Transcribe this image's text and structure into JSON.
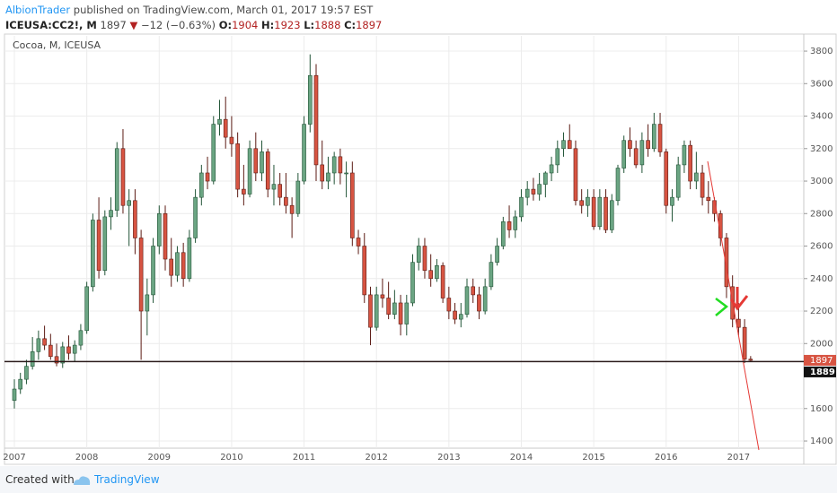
{
  "header": {
    "author": "AlbionTrader",
    "published": "published on TradingView.com, March 01, 2017 19:57 EST",
    "symbol": "ICEUSA:CC2!, M",
    "arrow": "▼",
    "change": "−12 (−0.63%)",
    "open_label": "O:",
    "high_label": "H:",
    "low_label": "L:",
    "close_label": "C:"
  },
  "chart_data": {
    "type": "candlestick",
    "title": "Cocoa, M, ICEUSA",
    "categories": [
      "2007",
      null,
      null,
      null,
      null,
      null,
      null,
      null,
      null,
      null,
      null,
      null,
      "2008",
      null,
      null,
      null,
      null,
      null,
      null,
      null,
      null,
      null,
      null,
      null,
      "2009",
      null,
      null,
      null,
      null,
      null,
      null,
      null,
      null,
      null,
      null,
      null,
      "2010",
      null,
      null,
      null,
      null,
      null,
      null,
      null,
      null,
      null,
      null,
      null,
      "2011",
      null,
      null,
      null,
      null,
      null,
      null,
      null,
      null,
      null,
      null,
      null,
      "2012",
      null,
      null,
      null,
      null,
      null,
      null,
      null,
      null,
      null,
      null,
      null,
      "2013",
      null,
      null,
      null,
      null,
      null,
      null,
      null,
      null,
      null,
      null,
      null,
      "2014",
      null,
      null,
      null,
      null,
      null,
      null,
      null,
      null,
      null,
      null,
      null,
      "2015",
      null,
      null,
      null,
      null,
      null,
      null,
      null,
      null,
      null,
      null,
      null,
      "2016",
      null,
      null,
      null,
      null,
      null,
      null,
      null,
      null,
      null,
      null,
      null,
      "2017",
      null,
      null
    ],
    "open": [
      1650,
      1720,
      1780,
      1860,
      1950,
      2030,
      1990,
      1920,
      1880,
      1980,
      1940,
      1990,
      2080,
      2350,
      2760,
      2450,
      2780,
      2820,
      3200,
      2850,
      2880,
      2650,
      2200,
      2300,
      2600,
      2800,
      2520,
      2420,
      2560,
      2400,
      2650,
      2900,
      3050,
      3000,
      3350,
      3380,
      3270,
      3230,
      2950,
      2920,
      3200,
      3050,
      3180,
      2950,
      2980,
      2900,
      2850,
      2800,
      3000,
      3350,
      3650,
      3100,
      3000,
      3050,
      3150,
      3050,
      3050,
      2650,
      2600,
      2300,
      2100,
      2300,
      2280,
      2180,
      2250,
      2120,
      2250,
      2500,
      2600,
      2450,
      2400,
      2480,
      2280,
      2200,
      2150,
      2180,
      2350,
      2300,
      2200,
      2350,
      2500,
      2600,
      2750,
      2700,
      2780,
      2900,
      2950,
      2920,
      2980,
      3050,
      3100,
      3200,
      3250,
      3200,
      2880,
      2850,
      2900,
      2720,
      2900,
      2700,
      2880,
      3080,
      3250,
      3200,
      3100,
      3250,
      3200,
      3350,
      3180,
      2850,
      2900,
      3100,
      3220,
      3000,
      3050,
      2900,
      2880,
      2800,
      2650,
      2350,
      2150,
      2100,
      1904
    ],
    "high": [
      1780,
      1820,
      1900,
      2040,
      2080,
      2110,
      2060,
      2000,
      2010,
      2050,
      2020,
      2120,
      2380,
      2800,
      2900,
      2820,
      2900,
      3240,
      3320,
      2950,
      2950,
      2700,
      2400,
      2650,
      2850,
      2850,
      2650,
      2600,
      2620,
      2700,
      2950,
      3100,
      3150,
      3400,
      3500,
      3520,
      3400,
      3300,
      3100,
      3250,
      3300,
      3250,
      3200,
      3100,
      3050,
      3050,
      2900,
      3050,
      3400,
      3780,
      3720,
      3250,
      3150,
      3180,
      3200,
      3120,
      3120,
      2700,
      2680,
      2350,
      2350,
      2400,
      2380,
      2330,
      2300,
      2300,
      2550,
      2650,
      2650,
      2550,
      2520,
      2500,
      2350,
      2250,
      2250,
      2400,
      2400,
      2350,
      2400,
      2550,
      2650,
      2780,
      2850,
      2820,
      2950,
      3000,
      3020,
      3050,
      3060,
      3150,
      3250,
      3300,
      3350,
      3250,
      2950,
      2950,
      2950,
      2950,
      2950,
      2920,
      3100,
      3280,
      3330,
      3250,
      3300,
      3350,
      3420,
      3420,
      3200,
      2950,
      3150,
      3250,
      3250,
      3180,
      3100,
      3000,
      2900,
      2820,
      2680,
      2420,
      2250,
      2150,
      1923
    ],
    "low": [
      1600,
      1690,
      1750,
      1840,
      1900,
      1960,
      1900,
      1860,
      1850,
      1900,
      1890,
      1960,
      2060,
      2320,
      2400,
      2420,
      2700,
      2780,
      2800,
      2600,
      2550,
      1900,
      2050,
      2250,
      2550,
      2450,
      2350,
      2380,
      2350,
      2380,
      2620,
      2850,
      2950,
      2980,
      3280,
      3200,
      3150,
      2900,
      2850,
      2900,
      3000,
      3000,
      2900,
      2850,
      2850,
      2800,
      2650,
      2780,
      2980,
      3300,
      3000,
      2950,
      2950,
      2980,
      2980,
      2900,
      2600,
      2550,
      2250,
      1990,
      2080,
      2220,
      2150,
      2150,
      2050,
      2050,
      2230,
      2450,
      2400,
      2350,
      2380,
      2250,
      2150,
      2120,
      2100,
      2160,
      2250,
      2150,
      2180,
      2330,
      2480,
      2580,
      2650,
      2650,
      2750,
      2850,
      2880,
      2880,
      2900,
      3000,
      3050,
      3150,
      3200,
      2850,
      2800,
      2780,
      2700,
      2700,
      2680,
      2680,
      2850,
      3050,
      3150,
      3080,
      3050,
      3150,
      3180,
      3150,
      2800,
      2750,
      2880,
      3050,
      2950,
      2950,
      2850,
      2800,
      2750,
      2600,
      2280,
      2100,
      2050,
      1880,
      1888
    ],
    "close": [
      1720,
      1780,
      1860,
      1950,
      2030,
      1990,
      1920,
      1880,
      1980,
      1940,
      1990,
      2080,
      2350,
      2760,
      2450,
      2780,
      2820,
      3200,
      2850,
      2880,
      2650,
      2200,
      2300,
      2600,
      2800,
      2520,
      2420,
      2560,
      2400,
      2650,
      2900,
      3050,
      3000,
      3350,
      3380,
      3270,
      3230,
      2950,
      2920,
      3200,
      3050,
      3180,
      2950,
      2980,
      2900,
      2850,
      2800,
      3000,
      3350,
      3650,
      3100,
      3000,
      3050,
      3150,
      3050,
      3050,
      2650,
      2600,
      2300,
      2100,
      2300,
      2280,
      2180,
      2250,
      2120,
      2250,
      2500,
      2600,
      2450,
      2400,
      2480,
      2280,
      2200,
      2150,
      2180,
      2350,
      2300,
      2200,
      2350,
      2500,
      2600,
      2750,
      2700,
      2780,
      2900,
      2950,
      2920,
      2980,
      3050,
      3100,
      3200,
      3250,
      3200,
      2880,
      2850,
      2900,
      2720,
      2900,
      2700,
      2880,
      3080,
      3250,
      3200,
      3100,
      3250,
      3200,
      3350,
      3180,
      2850,
      2900,
      3100,
      3220,
      3000,
      3050,
      2900,
      2880,
      2800,
      2650,
      2350,
      2150,
      2100,
      1904,
      1897
    ],
    "up_color": "#6ba583",
    "up_border": "#225437",
    "down_color": "#d75442",
    "down_border": "#5b1a13",
    "ylim": [
      1356,
      3894
    ],
    "yticks": [
      1400,
      1600,
      2000,
      2200,
      2400,
      2600,
      2800,
      3000,
      3200,
      3400,
      3600,
      3800
    ],
    "grid": true,
    "horizontal_line": 1889
  },
  "footer": {
    "created": "Created with",
    "brand": "TradingView"
  }
}
